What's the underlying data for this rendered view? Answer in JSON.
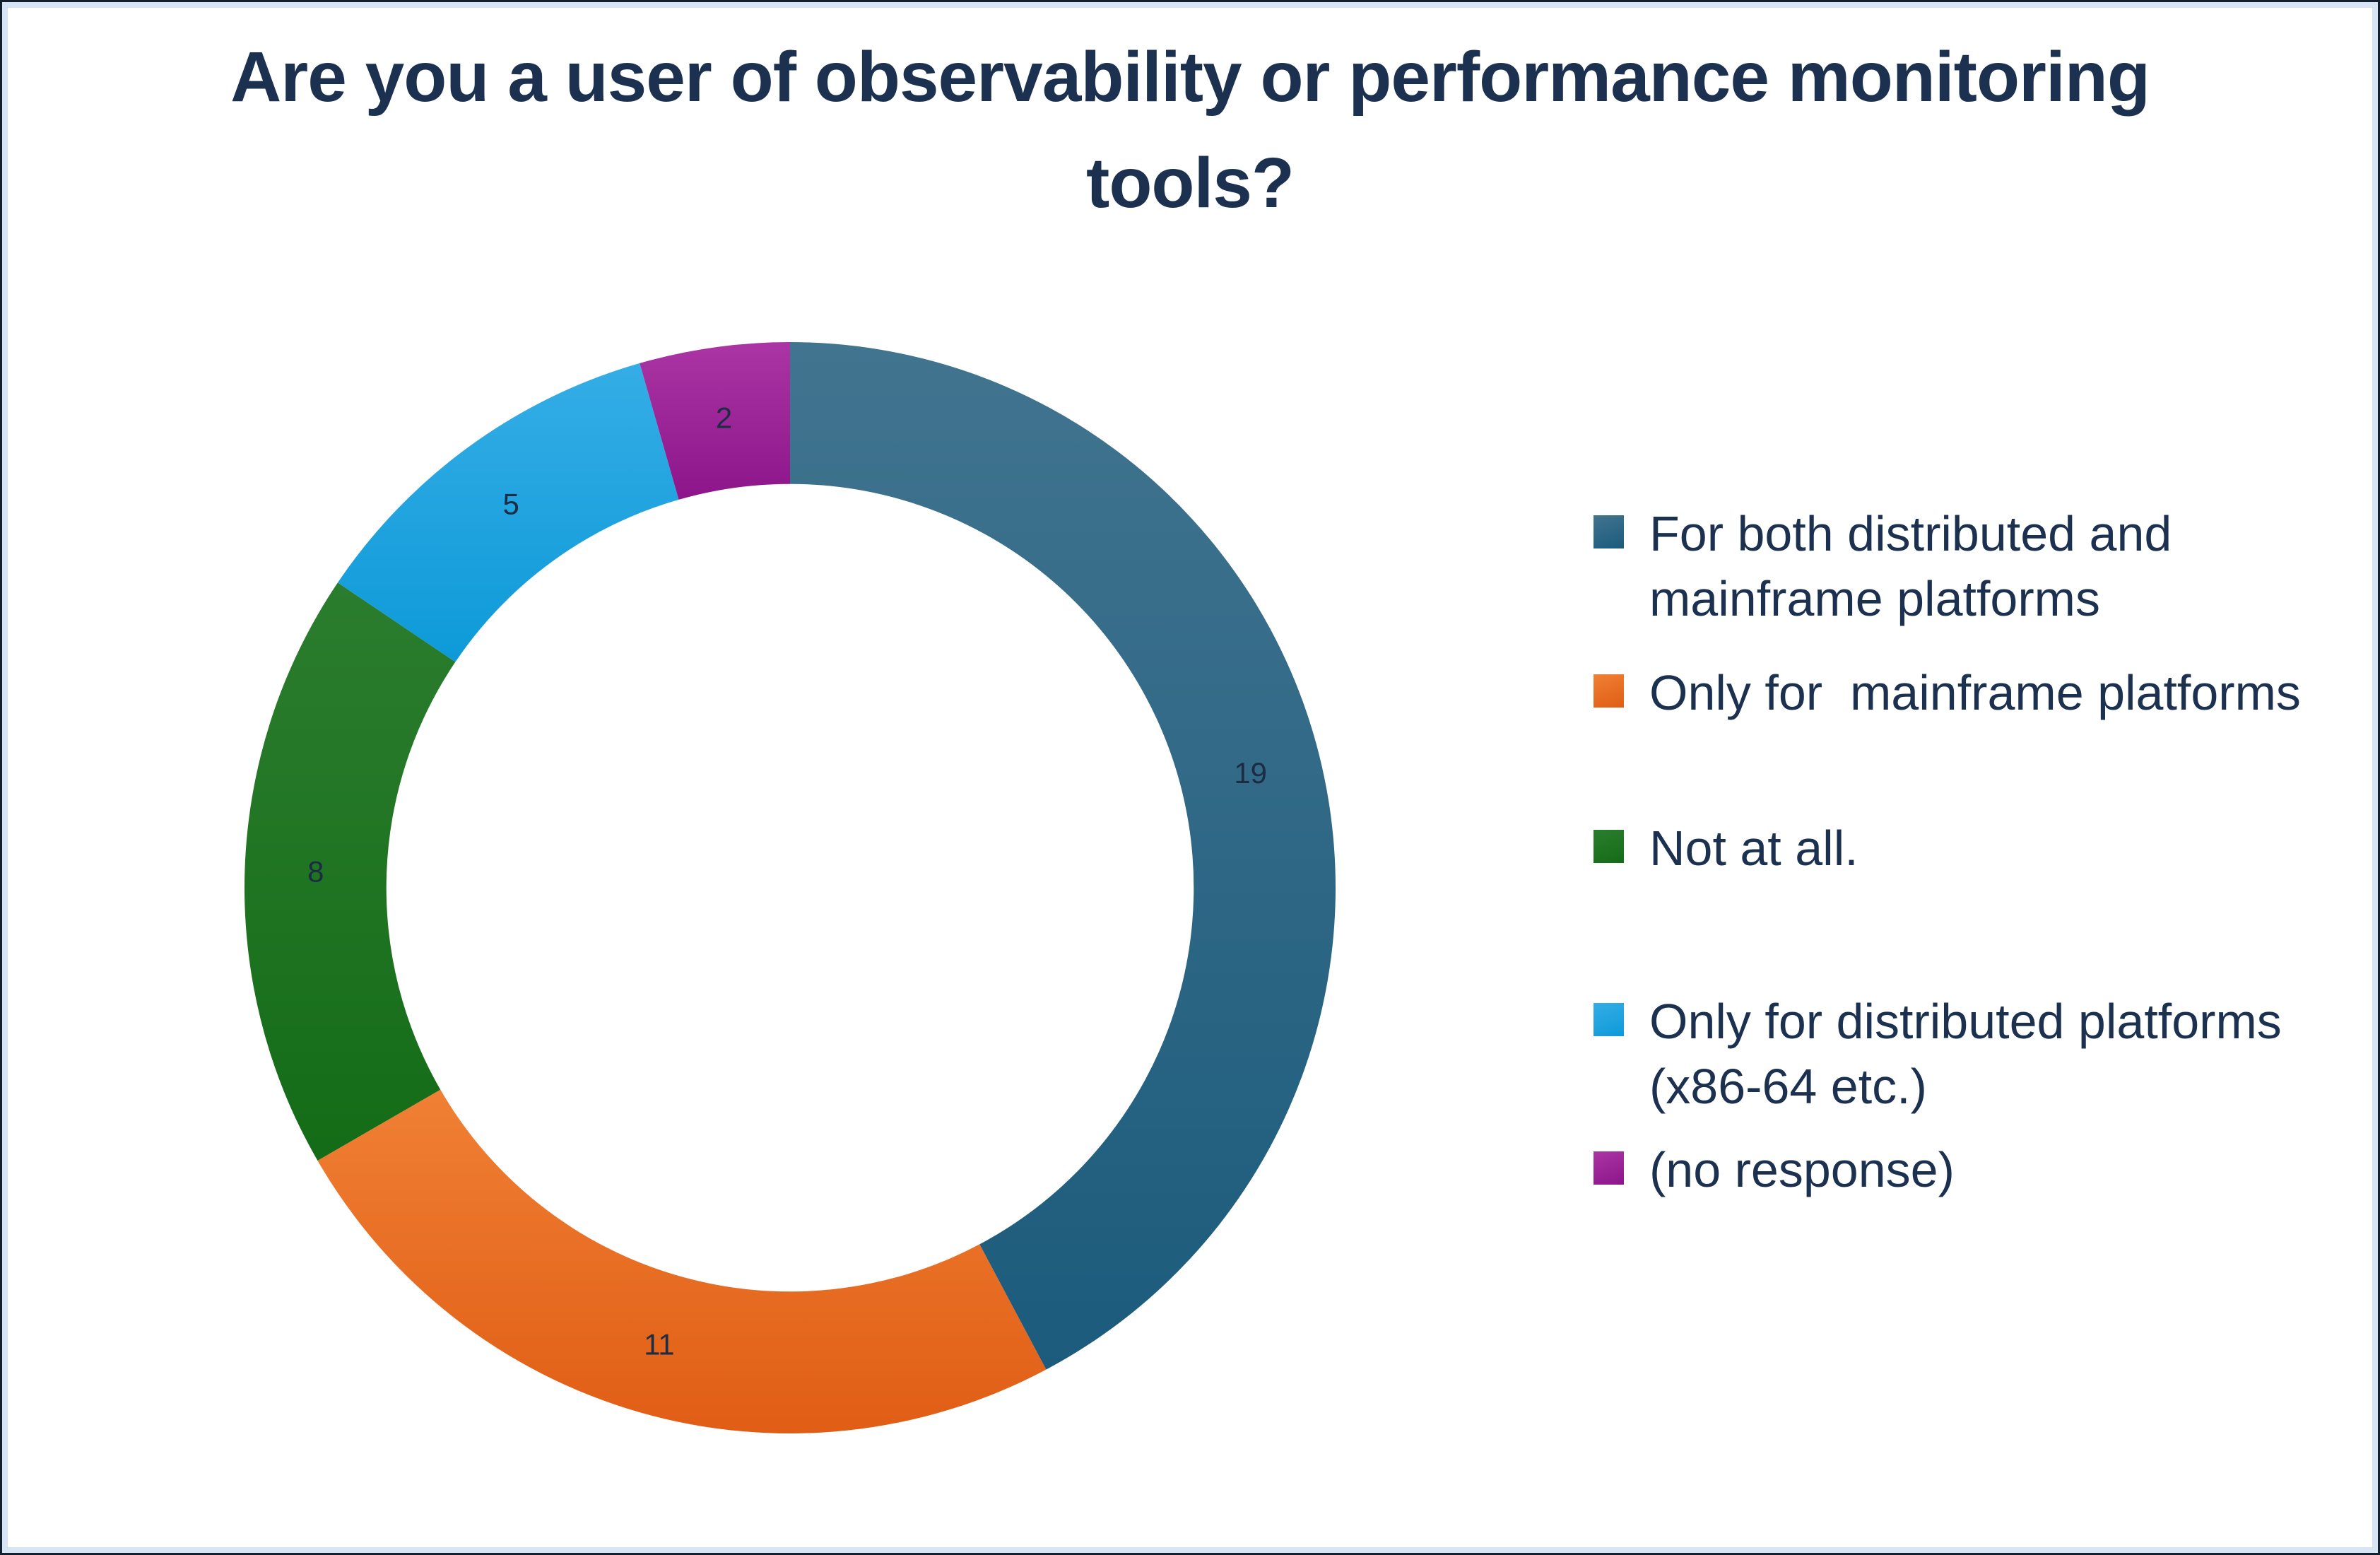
{
  "frame": {
    "outer_border_color": "#121f2c",
    "inner_border_color": "#d7e4f5",
    "background": "#ffffff"
  },
  "title": {
    "lines": [
      "Are you a user of observability or performance monitoring",
      "tools?"
    ],
    "full": "Are you a user of observability or performance monitoring tools?",
    "color": "#1c3150"
  },
  "chart_data": {
    "type": "pie",
    "subtype": "donut",
    "title": "Are you a user of observability or performance monitoring tools?",
    "categories": [
      "For both distributed and mainframe platforms",
      "Only for  mainframe platforms",
      "Not at all.",
      "Only for distributed platforms (x86-64 etc.)",
      "(no response)"
    ],
    "values": [
      19,
      11,
      8,
      5,
      2
    ],
    "total": 45,
    "colors": [
      "#2d6c8c",
      "#ec6f26",
      "#1e7420",
      "#1ba2e0",
      "#a0219b"
    ],
    "gradients": [
      [
        "#41748f",
        "#1c5b7c"
      ],
      [
        "#f08034",
        "#e05d15"
      ],
      [
        "#2b7d2e",
        "#146c17"
      ],
      [
        "#35ade6",
        "#0d9ad8"
      ],
      [
        "#ab35a4",
        "#8c158a"
      ]
    ],
    "data_label_color": "#1c2c44",
    "start_angle_deg": 0,
    "direction": "clockwise",
    "inner_radius_ratio": 0.74,
    "legend_position": "right",
    "background": "#ffffff"
  },
  "legend": {
    "text_color": "#1c3150",
    "items": [
      {
        "label": "For both distributed and mainframe platforms",
        "color": "#2d6c8c"
      },
      {
        "label": "Only for  mainframe platforms",
        "color": "#ec6f26"
      },
      {
        "label": "Not at all.",
        "color": "#1e7420"
      },
      {
        "label": "Only for distributed platforms (x86-64 etc.)",
        "color": "#1ba2e0"
      },
      {
        "label": "(no response)",
        "color": "#a0219b"
      }
    ]
  }
}
